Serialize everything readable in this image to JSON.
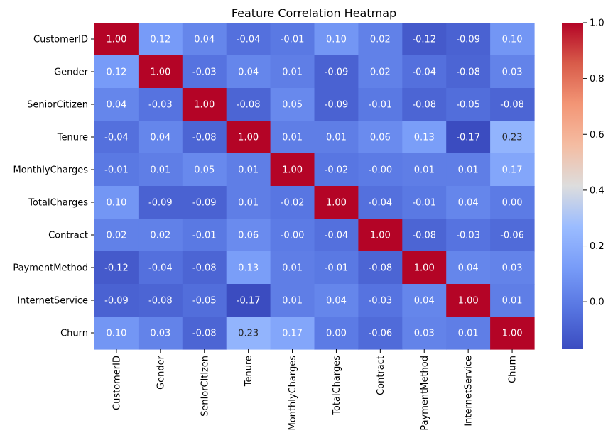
{
  "chart_data": {
    "type": "heatmap",
    "title": "Feature Correlation Heatmap",
    "xlabel": "",
    "ylabel": "",
    "labels": [
      "CustomerID",
      "Gender",
      "SeniorCitizen",
      "Tenure",
      "MonthlyCharges",
      "TotalCharges",
      "Contract",
      "PaymentMethod",
      "InternetService",
      "Churn"
    ],
    "matrix": [
      [
        "1.00",
        "0.12",
        "0.04",
        "-0.04",
        "-0.01",
        "0.10",
        "0.02",
        "-0.12",
        "-0.09",
        "0.10"
      ],
      [
        "0.12",
        "1.00",
        "-0.03",
        "0.04",
        "0.01",
        "-0.09",
        "0.02",
        "-0.04",
        "-0.08",
        "0.03"
      ],
      [
        "0.04",
        "-0.03",
        "1.00",
        "-0.08",
        "0.05",
        "-0.09",
        "-0.01",
        "-0.08",
        "-0.05",
        "-0.08"
      ],
      [
        "-0.04",
        "0.04",
        "-0.08",
        "1.00",
        "0.01",
        "0.01",
        "0.06",
        "0.13",
        "-0.17",
        "0.23"
      ],
      [
        "-0.01",
        "0.01",
        "0.05",
        "0.01",
        "1.00",
        "-0.02",
        "-0.00",
        "0.01",
        "0.01",
        "0.17"
      ],
      [
        "0.10",
        "-0.09",
        "-0.09",
        "0.01",
        "-0.02",
        "1.00",
        "-0.04",
        "-0.01",
        "0.04",
        "0.00"
      ],
      [
        "0.02",
        "0.02",
        "-0.01",
        "0.06",
        "-0.00",
        "-0.04",
        "1.00",
        "-0.08",
        "-0.03",
        "-0.06"
      ],
      [
        "-0.12",
        "-0.04",
        "-0.08",
        "0.13",
        "0.01",
        "-0.01",
        "-0.08",
        "1.00",
        "0.04",
        "0.03"
      ],
      [
        "-0.09",
        "-0.08",
        "-0.05",
        "-0.17",
        "0.01",
        "0.04",
        "-0.03",
        "0.04",
        "1.00",
        "0.01"
      ],
      [
        "0.10",
        "0.03",
        "-0.08",
        "0.23",
        "0.17",
        "0.00",
        "-0.06",
        "0.03",
        "0.01",
        "1.00"
      ]
    ],
    "color_range": [
      -0.17,
      1.0
    ],
    "colormap": "coolwarm",
    "colorbar_ticks": [
      "0.0",
      "0.2",
      "0.4",
      "0.6",
      "0.8",
      "1.0"
    ],
    "grid": false,
    "legend": "colorbar-right"
  }
}
